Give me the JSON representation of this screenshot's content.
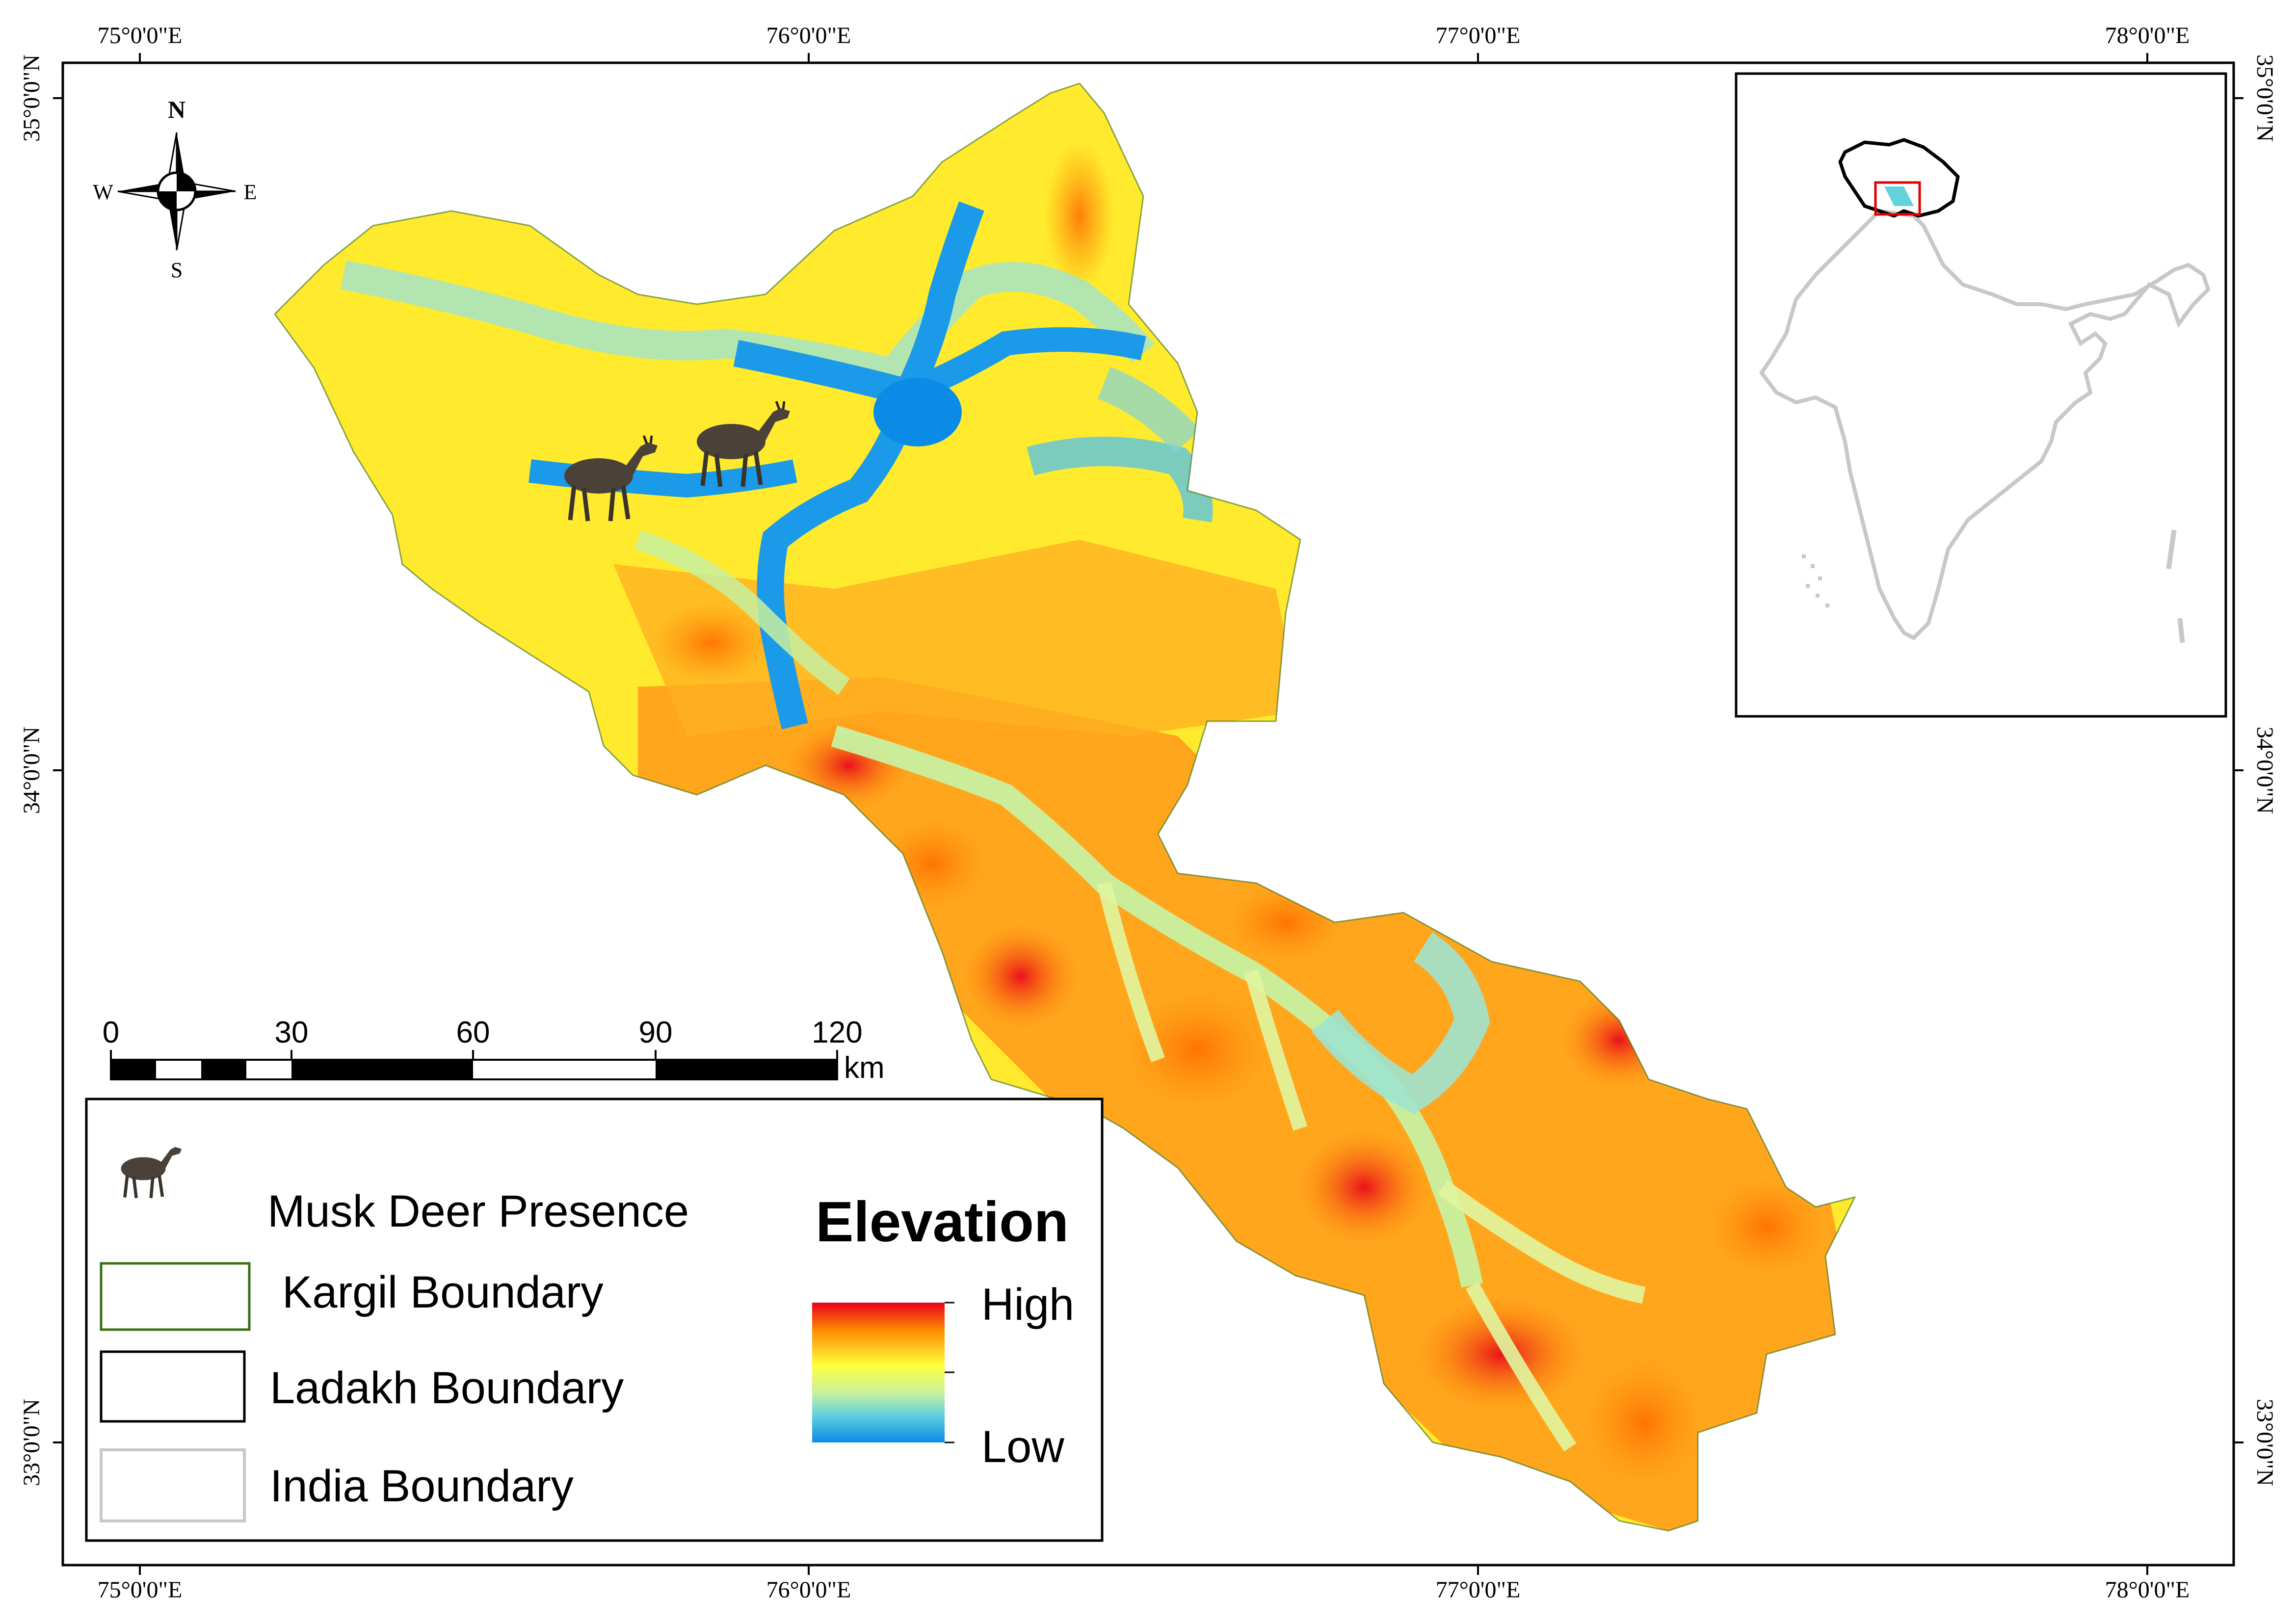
{
  "graticule": {
    "lon_top": [
      "75°0'0\"E",
      "76°0'0\"E",
      "77°0'0\"E",
      "78°0'0\"E"
    ],
    "lon_bottom": [
      "75°0'0\"E",
      "76°0'0\"E",
      "77°0'0\"E",
      "78°0'0\"E"
    ],
    "lat_left": [
      "35°0'0\"N",
      "34°0'0\"N",
      "33°0'0\"N"
    ],
    "lat_right": [
      "35°0'0\"N",
      "34°0'0\"N",
      "33°0'0\"N"
    ]
  },
  "compass": {
    "north": "N",
    "south": "S",
    "east": "E",
    "west": "W"
  },
  "scale_bar": {
    "ticks": [
      "0",
      "30",
      "60",
      "90",
      "120"
    ],
    "unit": "km"
  },
  "legend": {
    "musk_deer": "Musk Deer Presence",
    "kargil": "Kargil Boundary",
    "ladakh": "Ladakh Boundary",
    "india": "India Boundary",
    "elevation_title": "Elevation",
    "high": "High",
    "low": "Low"
  },
  "colors": {
    "elev_high": "#e8001c",
    "elev_orange": "#ff8c00",
    "elev_yellow": "#ffff3c",
    "elev_lightgreen": "#c8f0a0",
    "elev_cyan": "#64d2dc",
    "elev_low": "#0a8ce6",
    "kargil_boundary": "#3c6e14",
    "ladakh_boundary": "#000000",
    "india_boundary": "#c8c8c8",
    "inset_extent": "#e00000"
  }
}
